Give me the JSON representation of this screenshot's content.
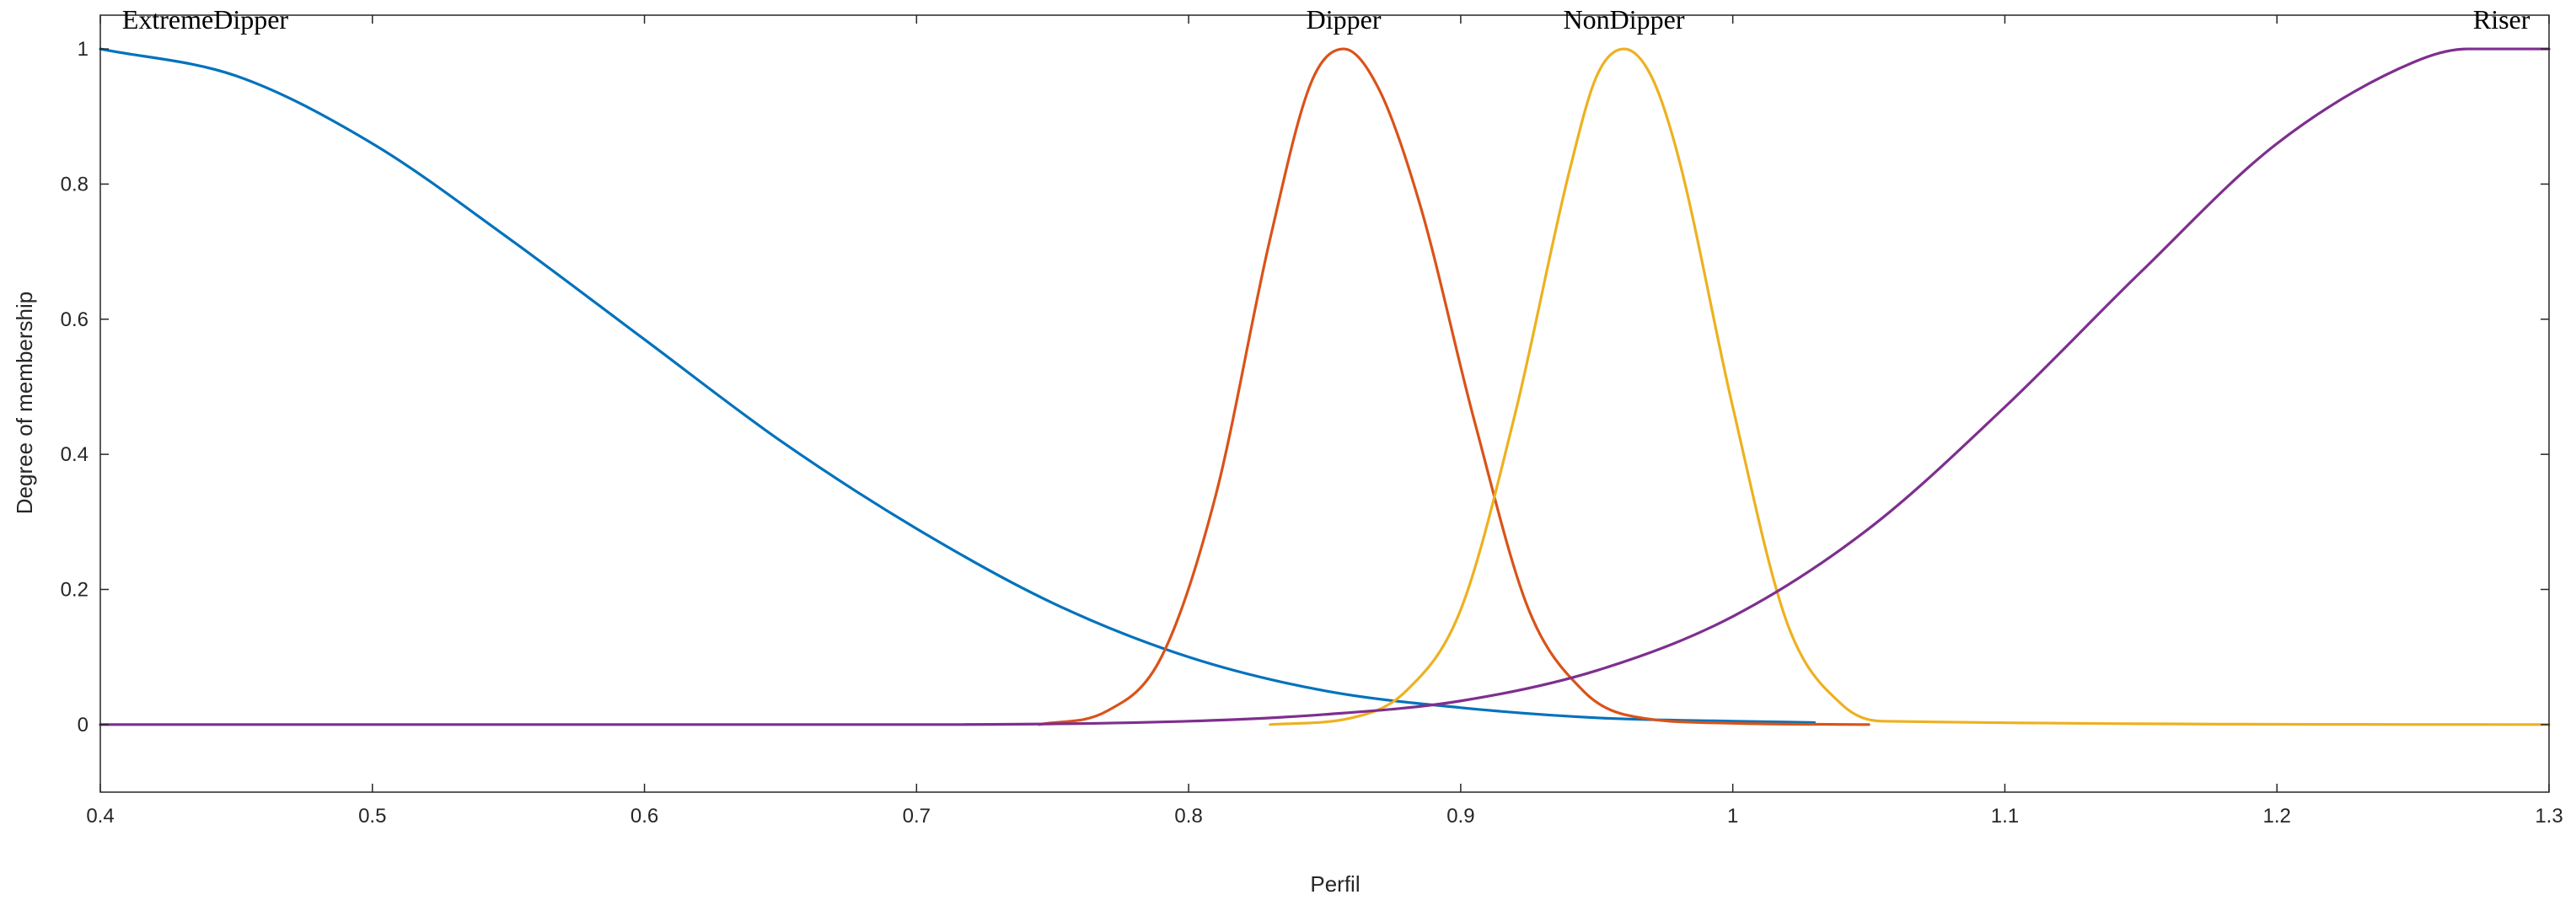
{
  "chart_data": {
    "type": "line",
    "title": "",
    "xlabel": "Perfil",
    "ylabel": "Degree of membership",
    "xlim": [
      0.4,
      1.3
    ],
    "ylim": [
      -0.1,
      1.05
    ],
    "xticks": [
      0.4,
      0.5,
      0.6,
      0.7,
      0.8,
      0.9,
      1.0,
      1.1,
      1.2,
      1.3
    ],
    "xtick_labels": [
      "0.4",
      "0.5",
      "0.6",
      "0.7",
      "0.8",
      "0.9",
      "1",
      "1.1",
      "1.2",
      "1.3"
    ],
    "yticks": [
      0,
      0.2,
      0.4,
      0.6,
      0.8,
      1.0
    ],
    "ytick_labels": [
      "0",
      "0.2",
      "0.4",
      "0.6",
      "0.8",
      "1"
    ],
    "grid": false,
    "legend": "none",
    "series": [
      {
        "name": "ExtremeDipper",
        "color": "#0072BD",
        "x": [
          0.4,
          0.45,
          0.5,
          0.55,
          0.6,
          0.65,
          0.7,
          0.75,
          0.8,
          0.85,
          0.9,
          0.95,
          1.0,
          1.03
        ],
        "y": [
          1.0,
          0.96,
          0.86,
          0.72,
          0.57,
          0.42,
          0.29,
          0.18,
          0.1,
          0.05,
          0.025,
          0.01,
          0.005,
          0.003
        ]
      },
      {
        "name": "Dipper",
        "color": "#D95319",
        "x": [
          0.745,
          0.77,
          0.79,
          0.81,
          0.83,
          0.845,
          0.857,
          0.87,
          0.885,
          0.905,
          0.925,
          0.945,
          0.96,
          1.0,
          1.05
        ],
        "y": [
          0.0,
          0.02,
          0.1,
          0.34,
          0.72,
          0.95,
          1.0,
          0.94,
          0.77,
          0.45,
          0.17,
          0.05,
          0.015,
          0.002,
          0.0
        ]
      },
      {
        "name": "NonDipper",
        "color": "#EDB120",
        "x": [
          0.83,
          0.86,
          0.88,
          0.9,
          0.92,
          0.94,
          0.95,
          0.96,
          0.97,
          0.98,
          1.0,
          1.02,
          1.04,
          1.055,
          1.3
        ],
        "y": [
          0.0,
          0.01,
          0.05,
          0.17,
          0.46,
          0.82,
          0.96,
          1.0,
          0.96,
          0.84,
          0.47,
          0.15,
          0.03,
          0.005,
          0.0
        ]
      },
      {
        "name": "Riser",
        "color": "#7E2F8E",
        "x": [
          0.4,
          0.7,
          0.8,
          0.85,
          0.9,
          0.95,
          1.0,
          1.05,
          1.1,
          1.15,
          1.2,
          1.25,
          1.27,
          1.3
        ],
        "y": [
          0.0,
          0.0,
          0.005,
          0.015,
          0.035,
          0.08,
          0.16,
          0.29,
          0.47,
          0.67,
          0.86,
          0.98,
          1.0,
          1.0
        ]
      }
    ],
    "annotations": [
      {
        "text": "ExtremeDipper",
        "x": 0.408,
        "y": 1.03,
        "anchor": "start"
      },
      {
        "text": "Dipper",
        "x": 0.857,
        "y": 1.03,
        "anchor": "middle"
      },
      {
        "text": "NonDipper",
        "x": 0.96,
        "y": 1.03,
        "anchor": "middle"
      },
      {
        "text": "Riser",
        "x": 1.293,
        "y": 1.03,
        "anchor": "end"
      }
    ]
  }
}
